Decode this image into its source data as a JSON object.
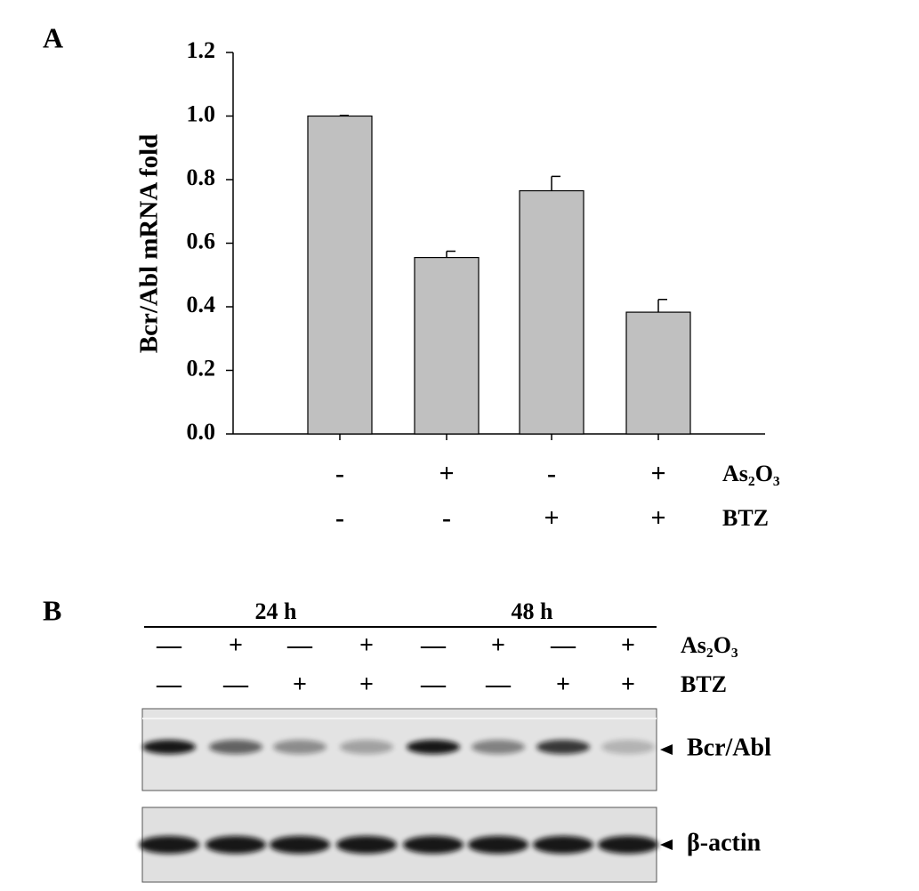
{
  "panel_a": {
    "label": "A"
  },
  "chart_data": {
    "type": "bar",
    "y_label": "Bcr/Abl mRNA fold",
    "values": [
      1.0,
      0.555,
      0.765,
      0.383
    ],
    "errors": [
      0.002,
      0.02,
      0.045,
      0.04
    ],
    "color": "#c0c0c0",
    "ylim": [
      0,
      1.2
    ],
    "yticks": [
      {
        "value": 0,
        "label": "0.0"
      },
      {
        "value": 0.2,
        "label": "0.2"
      },
      {
        "value": 0.4,
        "label": "0.4"
      },
      {
        "value": 0.6,
        "label": "0.6"
      },
      {
        "value": 0.8,
        "label": "0.8"
      },
      {
        "value": 1,
        "label": "1.0"
      },
      {
        "value": 1.2,
        "label": "1.2"
      }
    ],
    "treatments": [
      {
        "name": "As₂O₃",
        "marks": [
          "-",
          "+",
          "-",
          "+"
        ]
      },
      {
        "name": "BTZ",
        "marks": [
          "-",
          "-",
          "+",
          "+"
        ]
      }
    ]
  },
  "panel_b": {
    "label": "B",
    "time_groups": [
      "24 h",
      "48 h"
    ],
    "treatments": [
      {
        "name": "As₂O₃",
        "marks": [
          "—",
          "+",
          "—",
          "+",
          "—",
          "+",
          "—",
          "+"
        ]
      },
      {
        "name": "BTZ",
        "marks": [
          "—",
          "—",
          "+",
          "+",
          "—",
          "—",
          "+",
          "+"
        ]
      }
    ],
    "bands": [
      "Bcr/Abl",
      "β-actin"
    ]
  }
}
